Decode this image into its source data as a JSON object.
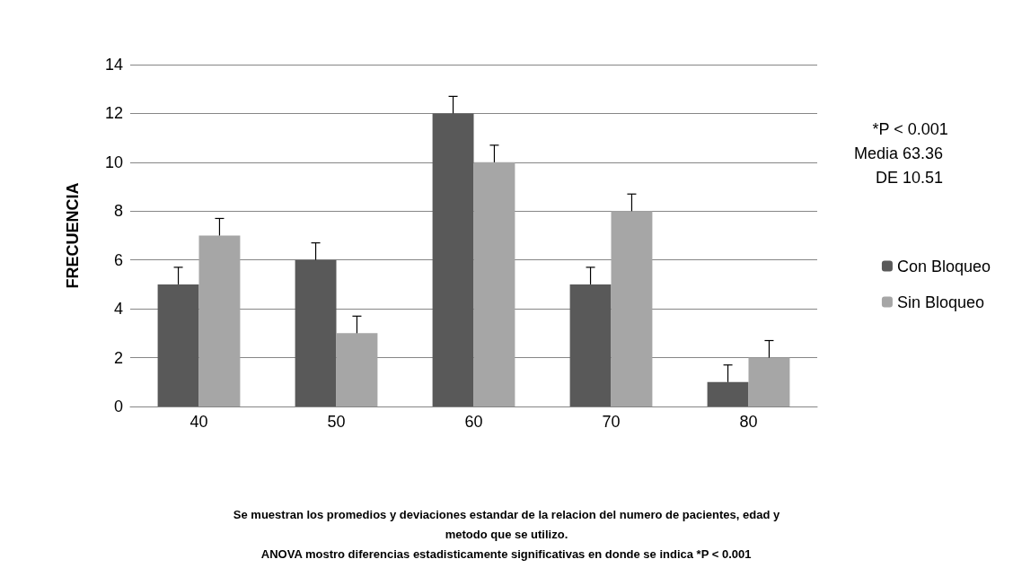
{
  "chart_data": {
    "type": "bar",
    "ylabel": "FRECUENCIA",
    "categories": [
      "40",
      "50",
      "60",
      "70",
      "80"
    ],
    "series": [
      {
        "name": "Con Bloqueo",
        "color": "#595959",
        "values": [
          5,
          6,
          12,
          5,
          1
        ],
        "errors": [
          [
            5,
            5.7
          ],
          [
            6,
            6.7
          ],
          [
            12,
            12.7
          ],
          [
            5,
            5.7
          ],
          [
            1,
            1.7
          ]
        ]
      },
      {
        "name": "Sin Bloqueo",
        "color": "#a6a6a6",
        "values": [
          7,
          3,
          10,
          8,
          2
        ],
        "errors": [
          [
            7,
            7.7
          ],
          [
            3,
            3.7
          ],
          [
            10,
            10.7
          ],
          [
            8,
            8.7
          ],
          [
            2,
            2.7
          ]
        ]
      }
    ],
    "ylim": [
      0,
      14
    ],
    "yticks": [
      0,
      2,
      4,
      6,
      8,
      10,
      12,
      14
    ],
    "grid": "y",
    "legend": "right",
    "annotations": [
      "*P < 0.001",
      "Media 63.36",
      "DE 10.51",
      "Se muestran los promedios y deviaciones estandar de la relacion del numero de pacientes, edad y",
      "metodo que se utilizo.",
      "ANOVA mostro diferencias estadisticamente significativas en donde se indica *P < 0.001"
    ]
  }
}
